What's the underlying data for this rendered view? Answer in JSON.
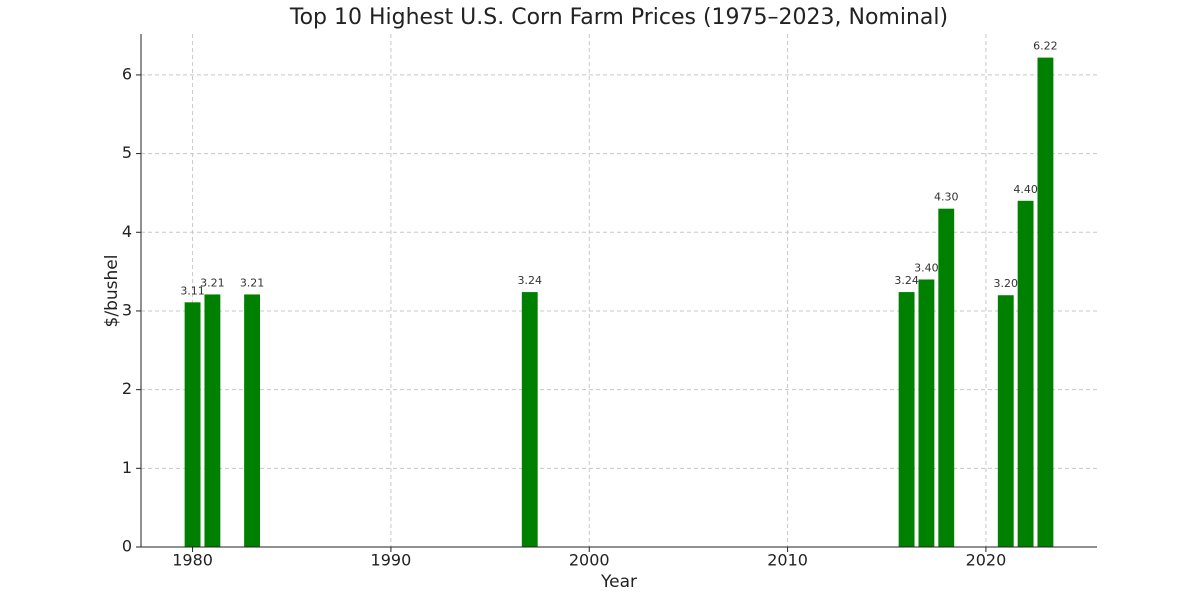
{
  "chart_data": {
    "type": "bar",
    "title": "Top 10 Highest U.S. Corn Farm Prices (1975–2023, Nominal)",
    "x_label": "Year",
    "y_label": "$/bushel",
    "x": [
      1980,
      1981,
      1983,
      1997,
      2016,
      2017,
      2018,
      2021,
      2022,
      2023
    ],
    "values": [
      3.11,
      3.21,
      3.21,
      3.24,
      3.24,
      3.4,
      4.3,
      3.2,
      4.4,
      6.22
    ],
    "value_labels": [
      "3.11",
      "3.21",
      "3.21",
      "3.24",
      "3.24",
      "3.40",
      "4.30",
      "3.20",
      "4.40",
      "6.22"
    ],
    "color": "#008000",
    "xlim": [
      1977.4,
      2025.6
    ],
    "xticks": [
      1980,
      1990,
      2000,
      2010,
      2020
    ],
    "ylim": [
      0,
      6.52
    ],
    "yticks": [
      0,
      1,
      2,
      3,
      4,
      5,
      6
    ],
    "grid": true
  }
}
